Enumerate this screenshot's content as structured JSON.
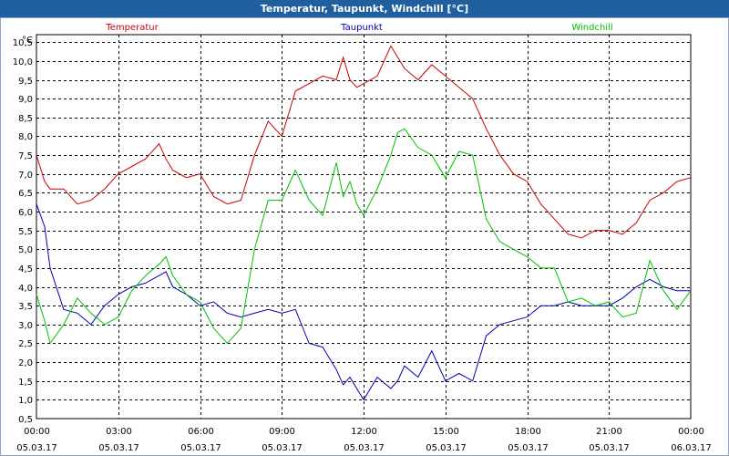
{
  "window": {
    "title": "Temperatur, Taupunkt, Windchill [°C]"
  },
  "chart_data": {
    "type": "line",
    "ylabel": "°C",
    "ylim": [
      0.5,
      10.7
    ],
    "yticks": [
      "0,5",
      "1,0",
      "1,5",
      "2,0",
      "2,5",
      "3,0",
      "3,5",
      "4,0",
      "4,5",
      "5,0",
      "5,5",
      "6,0",
      "6,5",
      "7,0",
      "7,5",
      "8,0",
      "8,5",
      "9,0",
      "9,5",
      "10,0",
      "10,5"
    ],
    "xticks": [
      {
        "time": "00:00",
        "date": "05.03.17"
      },
      {
        "time": "03:00",
        "date": "05.03.17"
      },
      {
        "time": "06:00",
        "date": "05.03.17"
      },
      {
        "time": "09:00",
        "date": "05.03.17"
      },
      {
        "time": "12:00",
        "date": "05.03.17"
      },
      {
        "time": "15:00",
        "date": "05.03.17"
      },
      {
        "time": "18:00",
        "date": "05.03.17"
      },
      {
        "time": "21:00",
        "date": "05.03.17"
      },
      {
        "time": "00:00",
        "date": "06.03.17"
      }
    ],
    "xlim_hours": [
      0,
      24
    ],
    "grid": true,
    "legend_position": "top",
    "series": [
      {
        "name": "Temperatur",
        "color": "#cc0000",
        "x": [
          0,
          0.3,
          0.5,
          1,
          1.5,
          2,
          2.5,
          3,
          3.5,
          4,
          4.5,
          4.75,
          5,
          5.5,
          6,
          6.5,
          7,
          7.5,
          8,
          8.5,
          9,
          9.5,
          10,
          10.5,
          11,
          11.25,
          11.5,
          11.75,
          12,
          12.5,
          13,
          13.25,
          13.5,
          14,
          14.5,
          15,
          15.5,
          16,
          16.5,
          17,
          17.5,
          18,
          18.5,
          19,
          19.5,
          20,
          20.5,
          21,
          21.5,
          22,
          22.5,
          23,
          23.5,
          24
        ],
        "values": [
          7.5,
          6.8,
          6.6,
          6.6,
          6.2,
          6.3,
          6.6,
          7.0,
          7.2,
          7.4,
          7.8,
          7.4,
          7.1,
          6.9,
          7.0,
          6.4,
          6.2,
          6.3,
          7.5,
          8.4,
          8.0,
          9.2,
          9.4,
          9.6,
          9.5,
          10.1,
          9.5,
          9.3,
          9.4,
          9.6,
          10.4,
          10.1,
          9.8,
          9.5,
          9.9,
          9.6,
          9.3,
          9.0,
          8.2,
          7.5,
          7.0,
          6.8,
          6.2,
          5.8,
          5.4,
          5.3,
          5.5,
          5.5,
          5.4,
          5.7,
          6.3,
          6.5,
          6.8,
          6.9
        ]
      },
      {
        "name": "Taupunkt",
        "color": "#0000b4",
        "x": [
          0,
          0.3,
          0.5,
          1,
          1.5,
          2,
          2.5,
          3,
          3.5,
          4,
          4.5,
          4.75,
          5,
          5.5,
          6,
          6.5,
          7,
          7.5,
          8,
          8.5,
          9,
          9.5,
          10,
          10.5,
          11,
          11.25,
          11.5,
          11.75,
          12,
          12.5,
          13,
          13.25,
          13.5,
          14,
          14.5,
          15,
          15.5,
          16,
          16.5,
          17,
          17.5,
          18,
          18.5,
          19,
          19.5,
          20,
          20.5,
          21,
          21.5,
          22,
          22.5,
          23,
          23.5,
          24
        ],
        "values": [
          6.2,
          5.6,
          4.5,
          3.4,
          3.3,
          3.0,
          3.5,
          3.8,
          4.0,
          4.1,
          4.3,
          4.4,
          4.0,
          3.8,
          3.5,
          3.6,
          3.3,
          3.2,
          3.3,
          3.4,
          3.3,
          3.4,
          2.5,
          2.4,
          1.8,
          1.4,
          1.6,
          1.3,
          1.0,
          1.6,
          1.3,
          1.5,
          1.9,
          1.6,
          2.3,
          1.5,
          1.7,
          1.5,
          2.7,
          3.0,
          3.1,
          3.2,
          3.5,
          3.5,
          3.6,
          3.5,
          3.5,
          3.5,
          3.7,
          4.0,
          4.2,
          4.0,
          3.9,
          3.9
        ]
      },
      {
        "name": "Windchill",
        "color": "#00c000",
        "x": [
          0,
          0.3,
          0.5,
          1,
          1.5,
          2,
          2.5,
          3,
          3.5,
          4,
          4.5,
          4.75,
          5,
          5.5,
          6,
          6.5,
          7,
          7.5,
          8,
          8.5,
          9,
          9.5,
          10,
          10.5,
          11,
          11.25,
          11.5,
          11.75,
          12,
          12.5,
          13,
          13.25,
          13.5,
          14,
          14.5,
          15,
          15.5,
          16,
          16.5,
          17,
          17.5,
          18,
          18.5,
          19,
          19.5,
          20,
          20.5,
          21,
          21.5,
          22,
          22.5,
          23,
          23.5,
          24
        ],
        "values": [
          3.8,
          3.1,
          2.5,
          3.0,
          3.7,
          3.3,
          3.0,
          3.2,
          3.9,
          4.3,
          4.6,
          4.8,
          4.3,
          3.8,
          3.6,
          2.9,
          2.5,
          2.9,
          5.0,
          6.3,
          6.3,
          7.1,
          6.3,
          5.9,
          7.3,
          6.4,
          6.8,
          6.2,
          5.9,
          6.6,
          7.5,
          8.1,
          8.2,
          7.7,
          7.5,
          6.9,
          7.6,
          7.5,
          5.8,
          5.2,
          5.0,
          4.8,
          4.5,
          4.5,
          3.6,
          3.7,
          3.5,
          3.6,
          3.2,
          3.3,
          4.7,
          3.9,
          3.4,
          3.9
        ]
      }
    ]
  }
}
